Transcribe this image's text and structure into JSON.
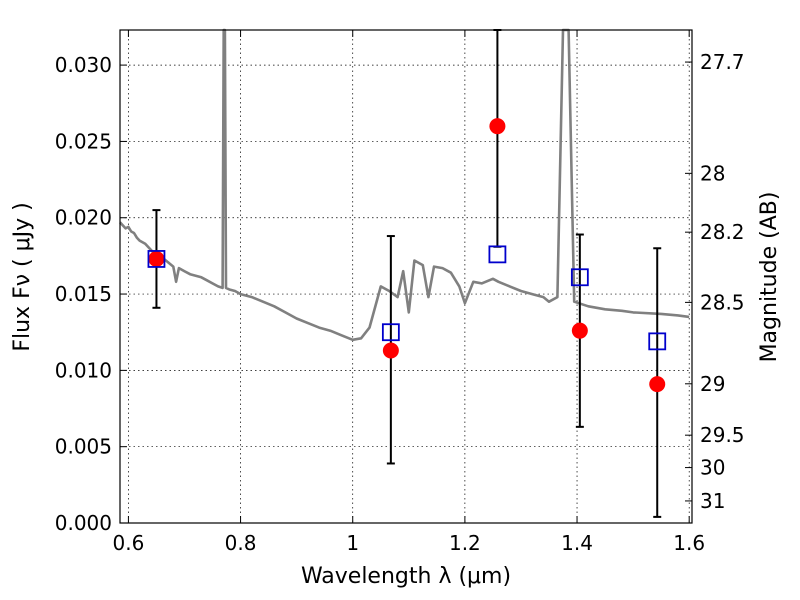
{
  "chart_data": {
    "type": "scatter",
    "xlabel": "Wavelength  λ (μm)",
    "ylabel": "Flux  Fν  ( μJy )",
    "y2label": "Magnitude (AB)",
    "xlim": [
      0.585,
      1.605
    ],
    "ylim": [
      0.0,
      0.0323
    ],
    "grid": true,
    "x_ticks": [
      {
        "value": 0.6,
        "label": "0.6"
      },
      {
        "value": 0.8,
        "label": "0.8"
      },
      {
        "value": 1.0,
        "label": "1"
      },
      {
        "value": 1.2,
        "label": "1.2"
      },
      {
        "value": 1.4,
        "label": "1.4"
      },
      {
        "value": 1.6,
        "label": "1.6"
      }
    ],
    "y_ticks": [
      {
        "value": 0.0,
        "label": "0.000"
      },
      {
        "value": 0.005,
        "label": "0.005"
      },
      {
        "value": 0.01,
        "label": "0.010"
      },
      {
        "value": 0.015,
        "label": "0.015"
      },
      {
        "value": 0.02,
        "label": "0.020"
      },
      {
        "value": 0.025,
        "label": "0.025"
      },
      {
        "value": 0.03,
        "label": "0.030"
      }
    ],
    "y2_ticks": [
      {
        "mag": 27.7,
        "label": "27.7"
      },
      {
        "mag": 28.0,
        "label": "28"
      },
      {
        "mag": 28.2,
        "label": "28.2"
      },
      {
        "mag": 28.5,
        "label": "28.5"
      },
      {
        "mag": 29.0,
        "label": "29"
      },
      {
        "mag": 29.5,
        "label": "29.5"
      },
      {
        "mag": 30.0,
        "label": "30"
      },
      {
        "mag": 31.0,
        "label": "31"
      }
    ],
    "series": [
      {
        "kind": "line",
        "color": "#808080",
        "points": [
          [
            0.585,
            0.0197
          ],
          [
            0.59,
            0.0195
          ],
          [
            0.595,
            0.0193
          ],
          [
            0.6,
            0.0194
          ],
          [
            0.605,
            0.0191
          ],
          [
            0.61,
            0.019
          ],
          [
            0.615,
            0.0187
          ],
          [
            0.62,
            0.0185
          ],
          [
            0.63,
            0.0183
          ],
          [
            0.64,
            0.0179
          ],
          [
            0.65,
            0.0175
          ],
          [
            0.66,
            0.0174
          ],
          [
            0.67,
            0.0171
          ],
          [
            0.68,
            0.0168
          ],
          [
            0.685,
            0.0158
          ],
          [
            0.69,
            0.0167
          ],
          [
            0.7,
            0.0165
          ],
          [
            0.71,
            0.0163
          ],
          [
            0.72,
            0.0162
          ],
          [
            0.73,
            0.0161
          ],
          [
            0.74,
            0.0159
          ],
          [
            0.75,
            0.0157
          ],
          [
            0.76,
            0.0155
          ],
          [
            0.768,
            0.0154
          ],
          [
            0.77,
            0.0323
          ],
          [
            0.772,
            0.0323
          ],
          [
            0.774,
            0.0154
          ],
          [
            0.78,
            0.0153
          ],
          [
            0.79,
            0.0152
          ],
          [
            0.8,
            0.015
          ],
          [
            0.82,
            0.0148
          ],
          [
            0.84,
            0.0145
          ],
          [
            0.86,
            0.0142
          ],
          [
            0.88,
            0.0138
          ],
          [
            0.9,
            0.0134
          ],
          [
            0.92,
            0.0131
          ],
          [
            0.94,
            0.0128
          ],
          [
            0.96,
            0.0126
          ],
          [
            0.98,
            0.0123
          ],
          [
            1.0,
            0.012
          ],
          [
            1.015,
            0.0121
          ],
          [
            1.03,
            0.0128
          ],
          [
            1.05,
            0.0155
          ],
          [
            1.065,
            0.0152
          ],
          [
            1.08,
            0.0148
          ],
          [
            1.09,
            0.0165
          ],
          [
            1.1,
            0.0138
          ],
          [
            1.11,
            0.0172
          ],
          [
            1.125,
            0.0169
          ],
          [
            1.135,
            0.0148
          ],
          [
            1.145,
            0.0168
          ],
          [
            1.16,
            0.0167
          ],
          [
            1.175,
            0.0164
          ],
          [
            1.19,
            0.0155
          ],
          [
            1.2,
            0.0144
          ],
          [
            1.215,
            0.0158
          ],
          [
            1.23,
            0.0157
          ],
          [
            1.25,
            0.016
          ],
          [
            1.26,
            0.0158
          ],
          [
            1.28,
            0.0155
          ],
          [
            1.3,
            0.0152
          ],
          [
            1.32,
            0.015
          ],
          [
            1.34,
            0.0148
          ],
          [
            1.35,
            0.0145
          ],
          [
            1.365,
            0.0148
          ],
          [
            1.375,
            0.0323
          ],
          [
            1.385,
            0.0323
          ],
          [
            1.395,
            0.0145
          ],
          [
            1.42,
            0.0142
          ],
          [
            1.45,
            0.014
          ],
          [
            1.48,
            0.0139
          ],
          [
            1.5,
            0.0138
          ],
          [
            1.55,
            0.0137
          ],
          [
            1.58,
            0.0136
          ],
          [
            1.6,
            0.0135
          ]
        ]
      },
      {
        "kind": "markers",
        "marker": "circle",
        "color": "#ff0000",
        "x": [
          0.65,
          1.068,
          1.258,
          1.405,
          1.543
        ],
        "y": [
          0.0173,
          0.0113,
          0.026,
          0.0126,
          0.0091
        ],
        "yerr_low": [
          0.0141,
          0.0039,
          0.0181,
          0.0063,
          0.0004
        ],
        "yerr_high": [
          0.0205,
          0.0188,
          0.0323,
          0.0189,
          0.018
        ]
      },
      {
        "kind": "markers",
        "marker": "square-open",
        "color": "#0000cc",
        "x": [
          0.65,
          1.068,
          1.258,
          1.405,
          1.543
        ],
        "y": [
          0.0173,
          0.0125,
          0.0176,
          0.0161,
          0.0119
        ]
      }
    ]
  }
}
